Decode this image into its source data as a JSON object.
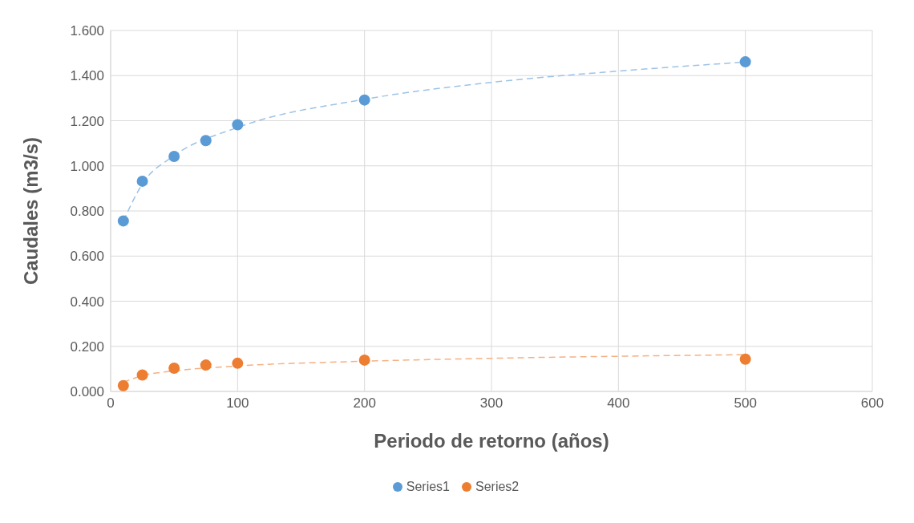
{
  "chart_data": {
    "type": "scatter",
    "xlabel": "Periodo de retorno (años)",
    "ylabel": "Caudales (m3/s)",
    "xlim": [
      0,
      600
    ],
    "xticks": [
      0,
      100,
      200,
      300,
      400,
      500,
      600
    ],
    "ylim": [
      0,
      1.6
    ],
    "yticks": [
      {
        "value": 0,
        "label": "0.000"
      },
      {
        "value": 0.2,
        "label": "0.200"
      },
      {
        "value": 0.4,
        "label": "0.400"
      },
      {
        "value": 0.6,
        "label": "0.600"
      },
      {
        "value": 0.8,
        "label": "0.800"
      },
      {
        "value": 1,
        "label": "1.000"
      },
      {
        "value": 1.2,
        "label": "1.200"
      },
      {
        "value": 1.4,
        "label": "1.400"
      },
      {
        "value": 1.6,
        "label": "1.600"
      }
    ],
    "grid": true,
    "legend": "bottom",
    "marker": "circle",
    "series": [
      {
        "name": "Series1",
        "color": "#5b9bd5",
        "x": [
          10,
          25,
          50,
          75,
          100,
          200,
          500
        ],
        "values": [
          0.756,
          0.932,
          1.042,
          1.112,
          1.182,
          1.292,
          1.461
        ]
      },
      {
        "name": "Series2",
        "color": "#ed7d31",
        "x": [
          10,
          25,
          50,
          75,
          100,
          200,
          500
        ],
        "values": [
          0.026,
          0.073,
          0.103,
          0.117,
          0.125,
          0.139,
          0.143
        ]
      },
      {
        "type": "line",
        "color": "#9dc3e6",
        "line_style": "dashed",
        "marker": "none",
        "x": [
          10,
          25,
          50,
          100,
          200,
          300,
          400,
          500
        ],
        "values": [
          0.755,
          0.92,
          1.045,
          1.17,
          1.295,
          1.37,
          1.42,
          1.46
        ]
      },
      {
        "type": "line",
        "color": "#f4b183",
        "line_style": "dashed",
        "marker": "none",
        "x": [
          10,
          25,
          50,
          100,
          200,
          300,
          400,
          500
        ],
        "values": [
          0.041,
          0.07,
          0.091,
          0.113,
          0.134,
          0.147,
          0.156,
          0.163
        ]
      }
    ]
  }
}
